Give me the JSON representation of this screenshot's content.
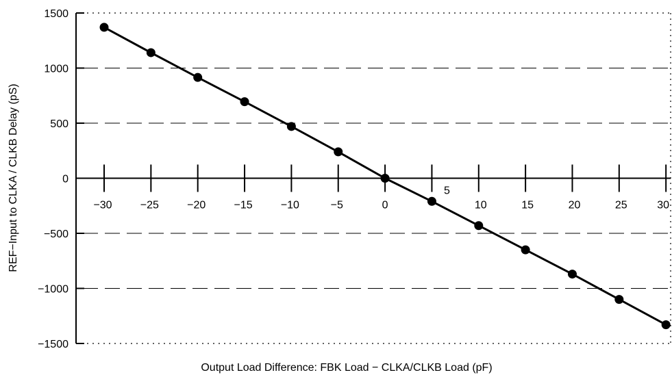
{
  "chart_data": {
    "type": "line",
    "title": "",
    "xlabel": "Output Load Difference: FBK Load − CLKA/CLKB Load (pF)",
    "ylabel": "REF−Input to CLKA / CLKB Delay (pS)",
    "xlim": [
      -33,
      30.5
    ],
    "ylim": [
      -1500,
      1500
    ],
    "x_ticks": [
      -30,
      -25,
      -20,
      -15,
      -10,
      -5,
      0,
      5,
      10,
      15,
      20,
      25,
      30
    ],
    "x_tick_labels": [
      "−30",
      "−25",
      "−20",
      "−15",
      "−10",
      "−5",
      "0",
      "5",
      "10",
      "15",
      "20",
      "25",
      "30"
    ],
    "y_ticks": [
      1500,
      1000,
      500,
      0,
      -500,
      -1000,
      -1500
    ],
    "y_tick_labels": [
      "1500",
      "1000",
      "500",
      "0",
      "−500",
      "−1000",
      "−1500"
    ],
    "grid": {
      "horizontal_dashed": [
        1000,
        500,
        -500,
        -1000
      ],
      "border_dotted": true
    },
    "series": [
      {
        "x": [
          -30,
          -25,
          -20,
          -15,
          -10,
          -5,
          0,
          5,
          10,
          15,
          20,
          25,
          30
        ],
        "values": [
          1370,
          1140,
          915,
          695,
          470,
          240,
          0,
          -210,
          -430,
          -650,
          -870,
          -1100,
          -1330
        ]
      }
    ]
  }
}
